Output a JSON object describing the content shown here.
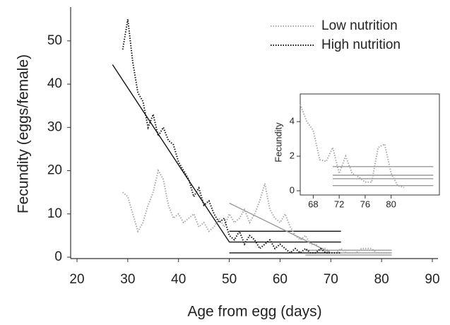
{
  "chart_data": [
    {
      "type": "line",
      "xlabel": "Age from egg (days)",
      "ylabel": "Fecundity (eggs/female)",
      "xlim": [
        20,
        90
      ],
      "ylim": [
        0,
        57
      ],
      "xticks": [
        20,
        30,
        40,
        50,
        60,
        70,
        80,
        90
      ],
      "yticks": [
        0,
        10,
        20,
        30,
        40,
        50
      ],
      "legend": "upper right",
      "series": [
        {
          "name": "Low nutrition",
          "color": "#a8a8a8",
          "x": [
            29,
            30,
            31,
            32,
            33,
            34,
            35,
            36,
            37,
            38,
            39,
            40,
            41,
            42,
            43,
            44,
            45,
            46,
            47,
            48,
            49,
            50,
            51,
            52,
            53,
            54,
            55,
            56,
            57,
            58,
            59,
            60,
            61,
            62,
            63,
            64,
            65,
            66,
            67,
            68,
            69,
            70,
            71,
            72,
            73,
            74,
            75,
            76,
            77,
            78,
            79,
            80,
            81,
            82
          ],
          "values": [
            15,
            14,
            10,
            6,
            8,
            12,
            15,
            20,
            18,
            12,
            9,
            10,
            8,
            9,
            10,
            7,
            8,
            6,
            7,
            9,
            7,
            10,
            8,
            9,
            11,
            8,
            10,
            13,
            17,
            11,
            9,
            8,
            10,
            7,
            5,
            4,
            5,
            3,
            3,
            2,
            2,
            1,
            1,
            2,
            1,
            1,
            1,
            2,
            2,
            2,
            1,
            1,
            1,
            1
          ]
        },
        {
          "name": "High nutrition",
          "color": "#111111",
          "x": [
            29,
            30,
            31,
            32,
            33,
            34,
            35,
            36,
            37,
            38,
            39,
            40,
            41,
            42,
            43,
            44,
            45,
            46,
            47,
            48,
            49,
            50,
            51,
            52,
            53,
            54,
            55,
            56,
            57,
            58,
            59,
            60,
            61,
            62,
            63,
            64,
            65,
            66,
            67,
            68,
            69,
            70,
            71,
            72
          ],
          "values": [
            48,
            55,
            45,
            38,
            36,
            30,
            33,
            28,
            30,
            27,
            26,
            22,
            20,
            18,
            14,
            16,
            12,
            13,
            10,
            8,
            9,
            5,
            4,
            6,
            3,
            5,
            4,
            2,
            3,
            4,
            2,
            3,
            2,
            1,
            2,
            1,
            2,
            1,
            1,
            2,
            1,
            1,
            1,
            1
          ]
        }
      ],
      "fit_lines": [
        {
          "color": "#111111",
          "x": [
            27,
            50,
            72
          ],
          "values": [
            44.5,
            3.5,
            3.5
          ]
        },
        {
          "color": "#111111",
          "x": [
            50,
            72
          ],
          "values": [
            6,
            6
          ]
        },
        {
          "color": "#111111",
          "x": [
            50,
            72
          ],
          "values": [
            1,
            1
          ]
        },
        {
          "color": "#999999",
          "x": [
            50,
            70,
            82
          ],
          "values": [
            12.5,
            1,
            1
          ]
        },
        {
          "color": "#999999",
          "x": [
            65,
            82
          ],
          "values": [
            1.6,
            1.6
          ]
        },
        {
          "color": "#999999",
          "x": [
            65,
            82
          ],
          "values": [
            0.5,
            0.5
          ]
        }
      ]
    },
    {
      "type": "line",
      "ylabel": "Fecundity",
      "xlim": [
        66,
        87
      ],
      "ylim": [
        0,
        5.6
      ],
      "xticks": [
        68,
        72,
        76,
        80
      ],
      "yticks": [
        0,
        2,
        4
      ],
      "series": [
        {
          "color": "#a8a8a8",
          "x": [
            66,
            67,
            68,
            69,
            70,
            71,
            72,
            73,
            74,
            75,
            76,
            77,
            78,
            79,
            80,
            81,
            82
          ],
          "values": [
            5,
            4,
            3.5,
            1.8,
            1.7,
            2.5,
            1,
            2,
            1,
            0.8,
            0.5,
            0.5,
            2.5,
            2.7,
            1,
            0.3,
            0.2
          ]
        }
      ],
      "fit_lines": [
        {
          "color": "#999999",
          "x": [
            71,
            86.5
          ],
          "values": [
            1.4,
            1.4
          ]
        },
        {
          "color": "#999999",
          "x": [
            71,
            86.5
          ],
          "values": [
            0.9,
            0.9
          ]
        },
        {
          "color": "#999999",
          "x": [
            71,
            86.5
          ],
          "values": [
            0.7,
            0.7
          ]
        },
        {
          "color": "#999999",
          "x": [
            71,
            86.5
          ],
          "values": [
            0.3,
            0.3
          ]
        }
      ]
    }
  ]
}
